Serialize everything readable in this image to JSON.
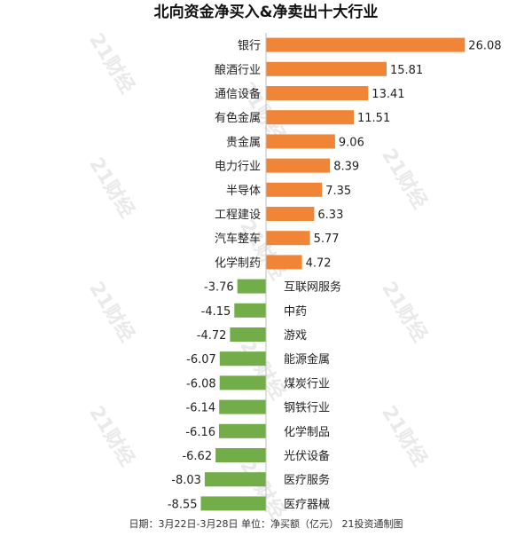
{
  "chart_data": {
    "type": "bar",
    "orientation": "horizontal",
    "title": "北向资金净买入&净卖出十大行业",
    "categories": [
      "银行",
      "酿酒行业",
      "通信设备",
      "有色金属",
      "贵金属",
      "电力行业",
      "半导体",
      "工程建设",
      "汽车整车",
      "化学制药",
      "互联网服务",
      "中药",
      "游戏",
      "能源金属",
      "煤炭行业",
      "钢铁行业",
      "化学制品",
      "光伏设备",
      "医疗服务",
      "医疗器械"
    ],
    "values": [
      26.08,
      15.81,
      13.41,
      11.51,
      9.06,
      8.39,
      7.35,
      6.33,
      5.77,
      4.72,
      -3.76,
      -4.15,
      -4.72,
      -6.07,
      -6.08,
      -6.14,
      -6.16,
      -6.62,
      -8.03,
      -8.55
    ],
    "value_labels": [
      "26.08",
      "15.81",
      "13.41",
      "11.51",
      "9.06",
      "8.39",
      "7.35",
      "6.33",
      "5.77",
      "4.72",
      "-3.76",
      "-4.15",
      "-4.72",
      "-6.07",
      "-6.08",
      "-6.14",
      "-6.16",
      "-6.62",
      "-8.03",
      "-8.55"
    ],
    "positive_color": "#F08538",
    "negative_color": "#72AD4A",
    "footer": "日期：3月22日-3月28日 单位：净买额（亿元） 21投资通制图",
    "watermark": "21财经",
    "grid": false,
    "legend": "none"
  }
}
